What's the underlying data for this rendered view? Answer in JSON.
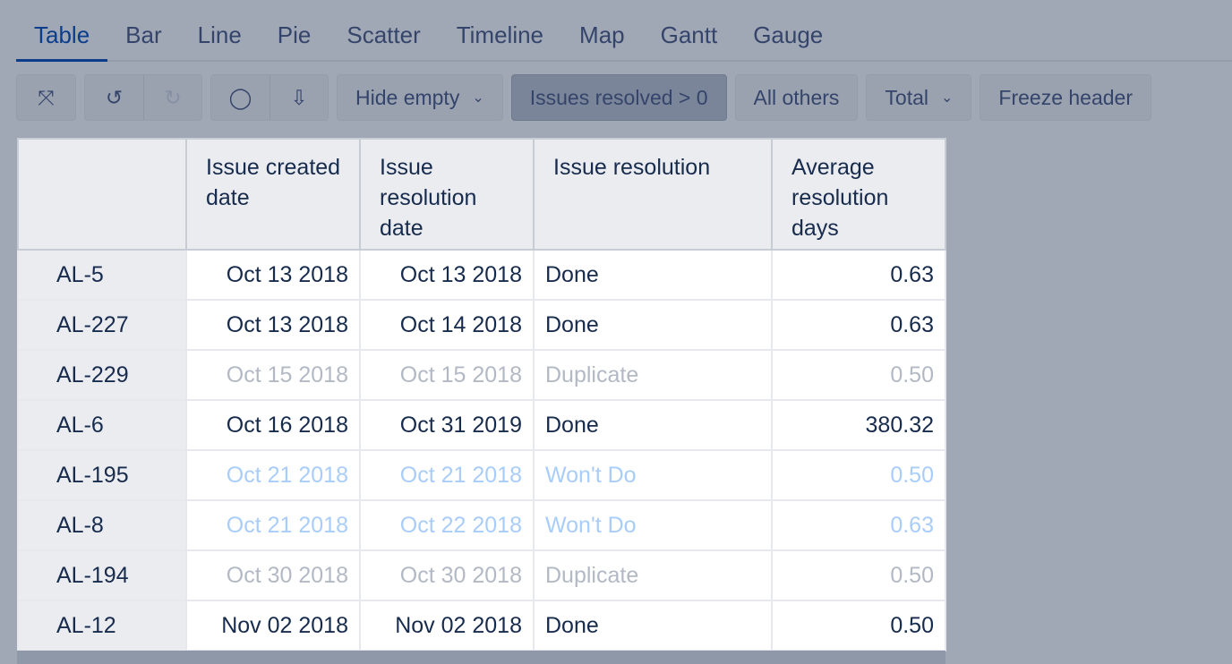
{
  "tabs": [
    "Table",
    "Bar",
    "Line",
    "Pie",
    "Scatter",
    "Timeline",
    "Map",
    "Gantt",
    "Gauge"
  ],
  "active_tab": "Table",
  "toolbar": {
    "hide_empty": "Hide empty",
    "filter": "Issues resolved > 0",
    "all_others": "All others",
    "total": "Total",
    "freeze_header": "Freeze header"
  },
  "table": {
    "headers": [
      "Issue created date",
      "Issue resolution date",
      "Issue resolution",
      "Average resolution days"
    ],
    "rows": [
      {
        "key": "AL-5",
        "created": "Oct 13 2018",
        "resolved": "Oct 13 2018",
        "resolution": "Done",
        "days": "0.63",
        "style": "normal"
      },
      {
        "key": "AL-227",
        "created": "Oct 13 2018",
        "resolved": "Oct 14 2018",
        "resolution": "Done",
        "days": "0.63",
        "style": "normal"
      },
      {
        "key": "AL-229",
        "created": "Oct 15 2018",
        "resolved": "Oct 15 2018",
        "resolution": "Duplicate",
        "days": "0.50",
        "style": "grey"
      },
      {
        "key": "AL-6",
        "created": "Oct 16 2018",
        "resolved": "Oct 31 2019",
        "resolution": "Done",
        "days": "380.32",
        "style": "normal"
      },
      {
        "key": "AL-195",
        "created": "Oct 21 2018",
        "resolved": "Oct 21 2018",
        "resolution": "Won't Do",
        "days": "0.50",
        "style": "blue"
      },
      {
        "key": "AL-8",
        "created": "Oct 21 2018",
        "resolved": "Oct 22 2018",
        "resolution": "Won't Do",
        "days": "0.63",
        "style": "blue"
      },
      {
        "key": "AL-194",
        "created": "Oct 30 2018",
        "resolved": "Oct 30 2018",
        "resolution": "Duplicate",
        "days": "0.50",
        "style": "grey"
      },
      {
        "key": "AL-12",
        "created": "Nov 02 2018",
        "resolved": "Nov 02 2018",
        "resolution": "Done",
        "days": "0.50",
        "style": "normal"
      }
    ]
  }
}
